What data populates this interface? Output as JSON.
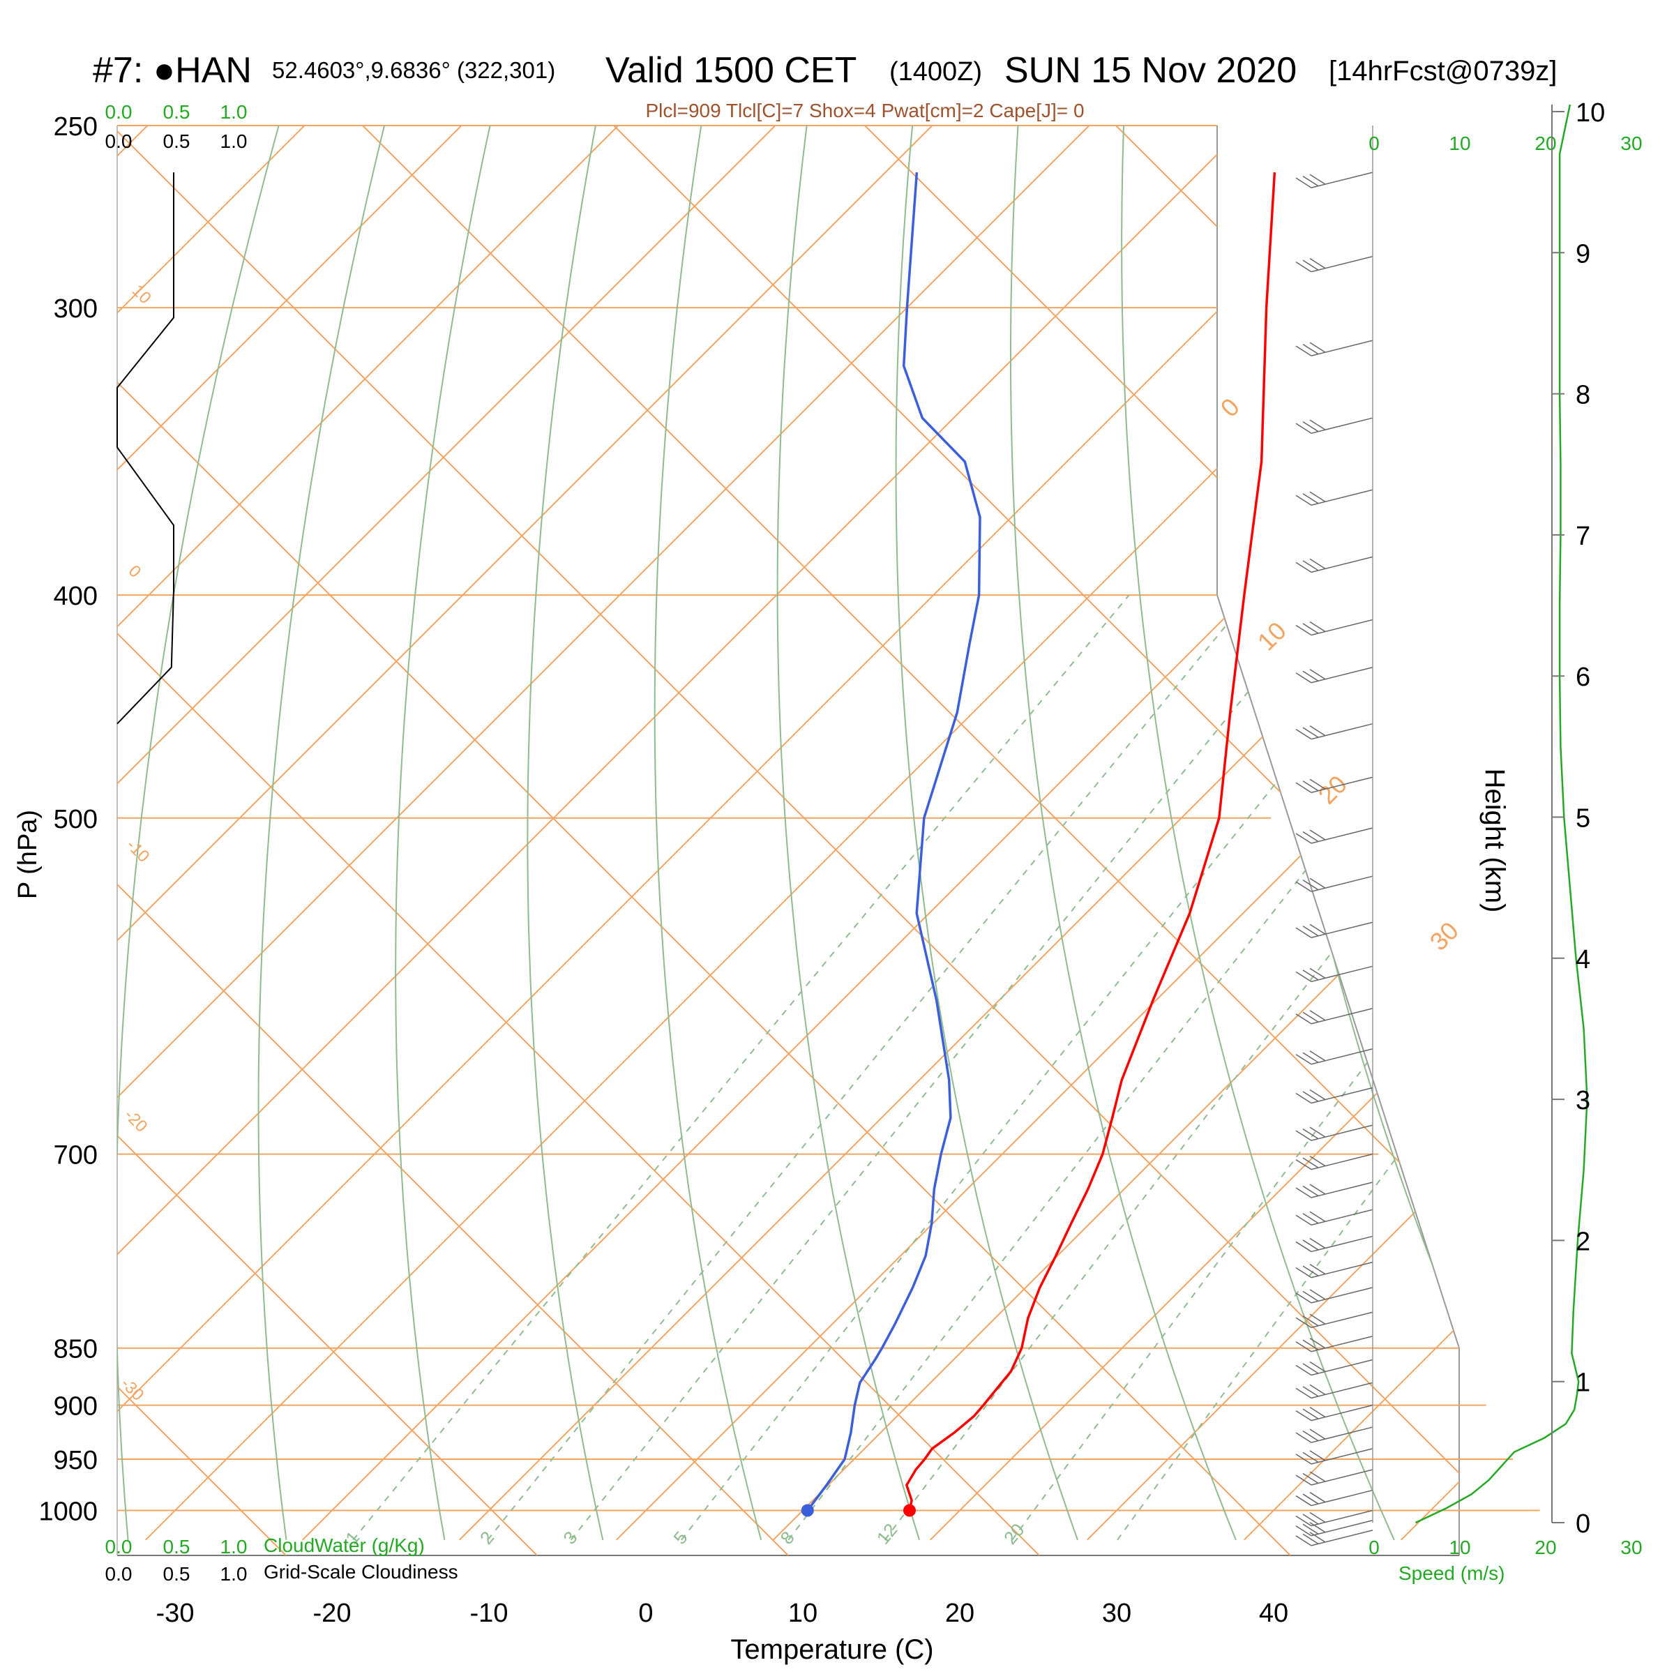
{
  "header": {
    "station": "#7: ●HAN",
    "coords": "52.4603°,9.6836° (322,301)",
    "valid_main": "Valid 1500 CET",
    "valid_utc": "(1400Z)",
    "date": "SUN 15 Nov 2020",
    "forecast": "[14hrFcst@0739z]",
    "indices": "Plcl=909 Tlcl[C]=7 Shox=4 Pwat[cm]=2 Cape[J]= 0"
  },
  "colors": {
    "temperature": "#ff0000",
    "dewpoint": "#3a5fdc",
    "isotherm": "#f4a460",
    "dry_adiabat": "#8fbc8f",
    "wind_speed": "#22aa22",
    "cloud": "#000000"
  },
  "chart_data": {
    "type": "line",
    "subtype": "skew-T log-P sounding",
    "xlabel": "Temperature (C)",
    "ylabel": "P (hPa)",
    "y2label": "Height (km)",
    "x_ticks": [
      "-30",
      "-20",
      "-10",
      "0",
      "10",
      "20",
      "30",
      "40"
    ],
    "p_ticks": [
      "250",
      "300",
      "400",
      "500",
      "700",
      "850",
      "900",
      "950",
      "1000"
    ],
    "height_ticks": [
      "0",
      "1",
      "2",
      "3",
      "4",
      "5",
      "6",
      "7",
      "8",
      "9",
      "10"
    ],
    "xlim": [
      -33,
      36
    ],
    "plim": [
      1030,
      250
    ],
    "y_scale": "log",
    "skew": "45deg",
    "isotherm_labels": [
      "10",
      "0",
      "-10",
      "-20",
      "-30"
    ],
    "isotherm_labels_right": [
      "0",
      "10",
      "20",
      "30"
    ],
    "mixing_ratio_labels": [
      "1",
      "2",
      "3",
      "5",
      "8",
      "12",
      "20"
    ],
    "series": [
      {
        "name": "Temperature",
        "p": [
          1000,
          990,
          975,
          960,
          950,
          940,
          925,
          910,
          900,
          885,
          870,
          850,
          825,
          800,
          775,
          750,
          725,
          700,
          675,
          650,
          600,
          550,
          500,
          450,
          400,
          350,
          300,
          262
        ],
        "t": [
          16.8,
          16.3,
          15.0,
          14.6,
          14.5,
          14.3,
          14.7,
          14.9,
          14.8,
          14.6,
          14.4,
          13.6,
          12.1,
          10.9,
          9.9,
          8.8,
          7.7,
          6.4,
          4.7,
          2.9,
          -0.2,
          -3.4,
          -7.6,
          -13.6,
          -20.2,
          -27.6,
          -37.1,
          -45.2
        ]
      },
      {
        "name": "Dew point",
        "p": [
          1000,
          975,
          950,
          925,
          900,
          880,
          860,
          850,
          830,
          800,
          775,
          750,
          725,
          700,
          675,
          650,
          600,
          550,
          500,
          450,
          420,
          400,
          370,
          350,
          335,
          318,
          300,
          262
        ],
        "t": [
          10.3,
          9.9,
          9.4,
          8.1,
          6.6,
          5.5,
          5.0,
          4.7,
          4.0,
          2.8,
          1.6,
          -0.1,
          -2.1,
          -3.9,
          -5.6,
          -8.1,
          -14.0,
          -20.8,
          -26.4,
          -31.0,
          -34.6,
          -37.1,
          -42.0,
          -46.5,
          -52.0,
          -56.5,
          -60.0,
          -68.0
        ]
      },
      {
        "name": "Wind speed",
        "h_km": [
          0.0,
          0.1,
          0.2,
          0.3,
          0.4,
          0.5,
          0.6,
          0.7,
          0.8,
          0.9,
          1.0,
          1.2,
          1.5,
          2.0,
          2.5,
          3.0,
          3.5,
          4.0,
          4.5,
          5.0,
          5.5,
          6.0,
          6.5,
          7.0,
          7.5,
          8.0,
          8.5,
          9.0,
          9.5,
          9.7,
          10.05
        ],
        "speed_ms": [
          5.0,
          8.5,
          11.5,
          13.5,
          15.0,
          16.5,
          20.0,
          22.5,
          23.5,
          23.8,
          24.0,
          23.2,
          23.4,
          23.9,
          24.6,
          25.0,
          24.6,
          23.7,
          23.0,
          22.3,
          21.9,
          21.8,
          21.8,
          21.9,
          21.9,
          21.8,
          21.8,
          21.8,
          21.8,
          21.8,
          23.0
        ]
      }
    ],
    "cloud_profile": {
      "p": [
        262,
        303,
        325,
        345,
        373,
        398,
        430,
        455
      ],
      "cloudiness": [
        0.5,
        0.5,
        0.0,
        0.0,
        0.5,
        0.5,
        0.48,
        0.0
      ]
    },
    "cloud_axis": {
      "top_green": [
        "0.0",
        "0.5",
        "1.0"
      ],
      "top_black": [
        "0.0",
        "0.5",
        "1.0"
      ],
      "bottom_green": [
        "0.0",
        "0.5",
        "1.0"
      ],
      "bottom_black": [
        "0.0",
        "0.5",
        "1.0"
      ],
      "cloudwater_label": "CloudWater (g/Kg)",
      "cloudiness_label": "Grid-Scale Cloudiness"
    },
    "speed_axis": {
      "ticks_top": [
        "0",
        "10",
        "20",
        "30"
      ],
      "ticks_bottom": [
        "0",
        "10",
        "20",
        "30"
      ],
      "label": "Speed (m/s)",
      "xlim": [
        0,
        30
      ]
    }
  }
}
